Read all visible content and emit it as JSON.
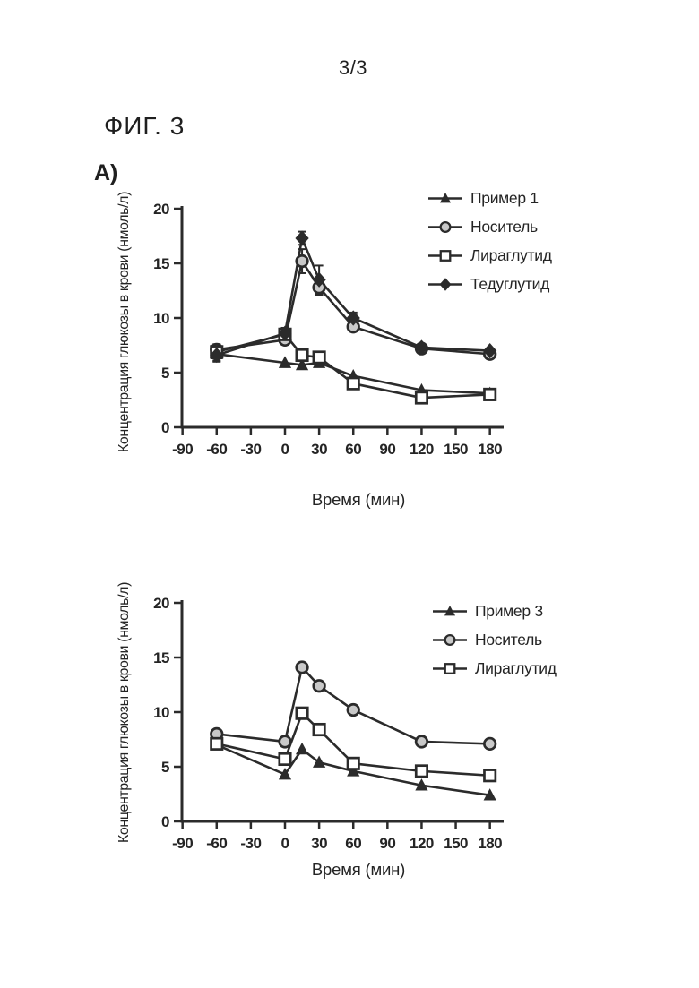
{
  "page": {
    "page_number": "3/3",
    "figure_label": "ФИГ. 3",
    "panel_label": "А)"
  },
  "colors": {
    "ink": "#2b2b2b",
    "circle_fill": "#c9c9c9",
    "paper": "#ffffff"
  },
  "chart_data": [
    {
      "type": "line",
      "title": "",
      "xlabel": "Время (мин)",
      "ylabel": "Концентрация глюкозы в крови (нмоль/л)",
      "xlim": [
        -90,
        192
      ],
      "ylim": [
        0,
        20
      ],
      "x_ticks": [
        -90,
        -60,
        -30,
        0,
        30,
        60,
        90,
        120,
        150,
        180
      ],
      "y_ticks": [
        0,
        5,
        10,
        15,
        20
      ],
      "grid": false,
      "legend_position": "top-right",
      "x": [
        -60,
        0,
        15,
        30,
        60,
        120,
        180
      ],
      "series": [
        {
          "name": "Пример 1",
          "marker": "triangle-filled",
          "values": [
            6.7,
            5.9,
            5.7,
            5.9,
            4.7,
            3.4,
            3.1
          ],
          "errors": [
            0.6,
            0,
            0,
            0,
            0,
            0,
            0
          ]
        },
        {
          "name": "Носитель",
          "marker": "circle-gray",
          "values": [
            7.1,
            8.0,
            15.2,
            12.8,
            9.2,
            7.2,
            6.7
          ],
          "errors": [
            0.5,
            0.4,
            1.1,
            0.7,
            0.4,
            0.3,
            0
          ]
        },
        {
          "name": "Лираглутид",
          "marker": "square-open",
          "values": [
            6.9,
            8.5,
            6.6,
            6.4,
            4.0,
            2.7,
            3.0
          ],
          "errors": [
            0.6,
            0.5,
            0.4,
            0,
            0.4,
            0,
            0
          ]
        },
        {
          "name": "Тедуглутид",
          "marker": "diamond-filled",
          "values": [
            6.6,
            8.6,
            17.3,
            13.5,
            10.0,
            7.3,
            7.0
          ],
          "errors": [
            0.6,
            0.5,
            0.6,
            1.3,
            0.5,
            0,
            0
          ]
        }
      ]
    },
    {
      "type": "line",
      "title": "",
      "xlabel": "Время (мин)",
      "ylabel": "Концентрация глюкозы в крови (нмоль/л)",
      "xlim": [
        -90,
        192
      ],
      "ylim": [
        0,
        20
      ],
      "x_ticks": [
        -90,
        -60,
        -30,
        0,
        30,
        60,
        90,
        120,
        150,
        180
      ],
      "y_ticks": [
        0,
        5,
        10,
        15,
        20
      ],
      "grid": false,
      "legend_position": "top-right",
      "x": [
        -60,
        0,
        15,
        30,
        60,
        120,
        180
      ],
      "series": [
        {
          "name": "Пример 3",
          "marker": "triangle-filled",
          "values": [
            7.0,
            4.3,
            6.6,
            5.4,
            4.6,
            3.3,
            2.4
          ],
          "errors": [
            0,
            0,
            0,
            0,
            0,
            0,
            0
          ]
        },
        {
          "name": "Носитель",
          "marker": "circle-gray",
          "values": [
            8.0,
            7.3,
            14.1,
            12.4,
            10.2,
            7.3,
            7.1
          ],
          "errors": [
            0,
            0,
            0,
            0,
            0,
            0,
            0
          ]
        },
        {
          "name": "Лираглутид",
          "marker": "square-open",
          "values": [
            7.1,
            5.7,
            9.9,
            8.4,
            5.3,
            4.6,
            4.2
          ],
          "errors": [
            0,
            0,
            0,
            0,
            0,
            0,
            0
          ]
        }
      ]
    }
  ]
}
